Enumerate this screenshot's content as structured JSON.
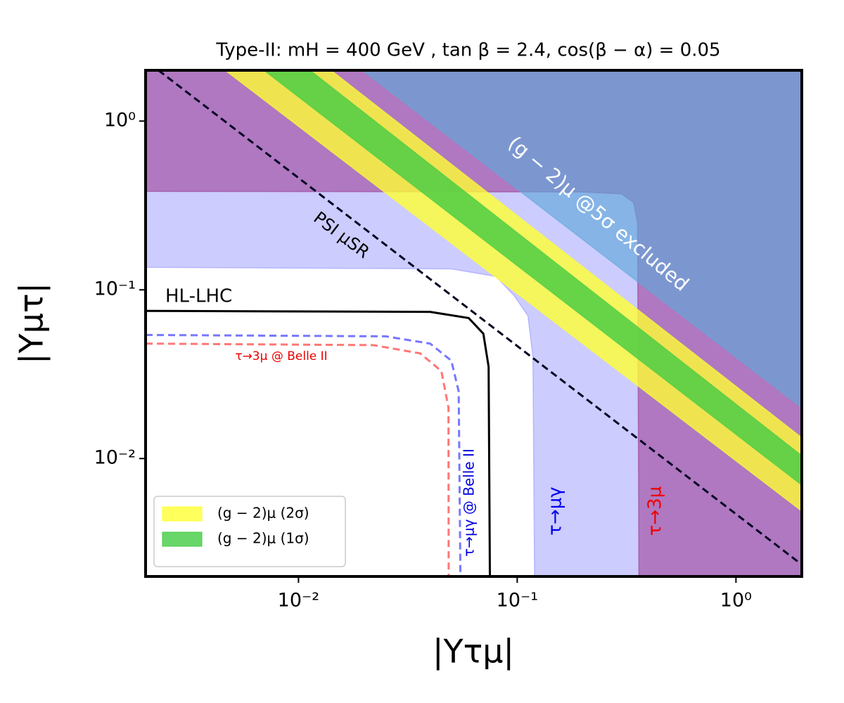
{
  "chart_data": {
    "type": "contour",
    "title": "Type-II: mH = 400 GeV , tan β = 2.4, cos(β − α) = 0.05",
    "xlabel": "|Yτμ|",
    "ylabel": "|Yμτ|",
    "xscale": "log",
    "yscale": "log",
    "xlim": [
      0.002,
      2
    ],
    "ylim": [
      0.002,
      2
    ],
    "xticks": [
      {
        "value": 0.01,
        "label": "10⁻²"
      },
      {
        "value": 0.1,
        "label": "10⁻¹"
      },
      {
        "value": 1,
        "label": "10⁰"
      }
    ],
    "yticks": [
      {
        "value": 0.01,
        "label": "10⁻²"
      },
      {
        "value": 0.1,
        "label": "10⁻¹"
      },
      {
        "value": 1,
        "label": "10⁰"
      }
    ],
    "legend_loc": "lower left",
    "regions": [
      {
        "color": "#9999ff",
        "opacity": 0.5,
        "x": [
          0.002,
          0.05,
          0.08,
          0.097,
          0.112,
          0.118,
          0.12,
          2,
          2,
          0.002
        ],
        "y": [
          0.136,
          0.133,
          0.12,
          0.092,
          0.07,
          0.04,
          0.002,
          0.002,
          2,
          2
        ]
      },
      {
        "color": "#9b3f96",
        "opacity": 0.6,
        "x": [
          0.002,
          0.2,
          0.3,
          0.34,
          0.355,
          0.36,
          2,
          2,
          0.002
        ],
        "y": [
          0.383,
          0.38,
          0.37,
          0.33,
          0.25,
          0.002,
          0.002,
          2,
          2
        ]
      },
      {
        "color": "#61a8d8",
        "opacity": 0.65,
        "x": [
          0.0196,
          2,
          2
        ],
        "y": [
          2,
          2,
          0.02
        ]
      },
      {
        "name": "(g − 2)μ (2σ)",
        "color": "#ffff33",
        "opacity": 0.8,
        "x": [
          0.00462,
          0.0141,
          2,
          2
        ],
        "y": [
          2,
          2,
          0.0133,
          0.00487
        ]
      },
      {
        "name": "(g − 2)μ (1σ)",
        "color": "#44cc44",
        "opacity": 0.8,
        "x": [
          0.00695,
          0.0113,
          2,
          2
        ],
        "y": [
          2,
          2,
          0.0104,
          0.00695
        ]
      }
    ],
    "lines": [
      {
        "color": "#ff7777",
        "style": "dashed",
        "x": [
          0.002,
          0.022,
          0.036,
          0.045,
          0.0485,
          0.0486
        ],
        "y": [
          0.048,
          0.047,
          0.042,
          0.033,
          0.02,
          0.002
        ]
      },
      {
        "color": "#7777ff",
        "style": "dashed",
        "x": [
          0.002,
          0.025,
          0.04,
          0.05,
          0.054,
          0.055
        ],
        "y": [
          0.054,
          0.053,
          0.048,
          0.038,
          0.025,
          0.002
        ]
      },
      {
        "color": "#000000",
        "style": "solid",
        "x": [
          0.002,
          0.04,
          0.06,
          0.07,
          0.074,
          0.075
        ],
        "y": [
          0.075,
          0.074,
          0.068,
          0.055,
          0.035,
          0.002
        ]
      },
      {
        "color": "#000022",
        "style": "dashed",
        "x": [
          0.00229,
          2
        ],
        "y": [
          2,
          0.00235
        ]
      }
    ],
    "annotations": [
      "(g − 2)μ @5σ excluded",
      "PSI μSR",
      "HL-LHC",
      "τ→3μ @ Belle II",
      "τ→μγ @ Belle II",
      "τ→μγ",
      "τ→3μ"
    ]
  }
}
